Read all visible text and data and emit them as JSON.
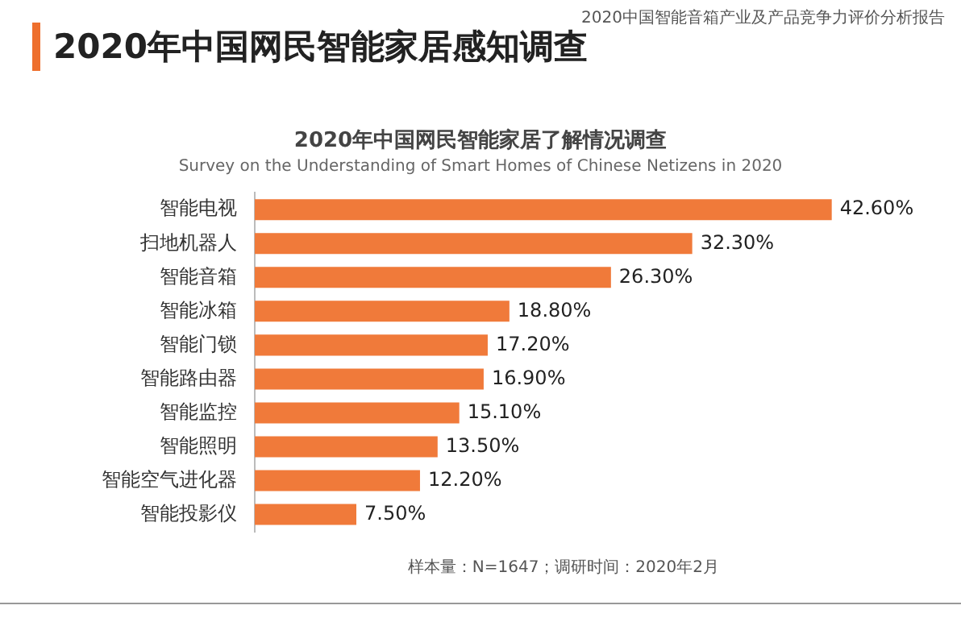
{
  "chart_data": {
    "type": "bar",
    "orientation": "horizontal",
    "title": "2020年中国网民智能家居了解情况调查",
    "subtitle": "Survey on the Understanding of Smart Homes of Chinese Netizens in 2020",
    "categories": [
      "智能电视",
      "扫地机器人",
      "智能音箱",
      "智能冰箱",
      "智能门锁",
      "智能路由器",
      "智能监控",
      "智能照明",
      "智能空气进化器",
      "智能投影仪"
    ],
    "values": [
      42.6,
      32.3,
      26.3,
      18.8,
      17.2,
      16.9,
      15.1,
      13.5,
      12.2,
      7.5
    ],
    "value_labels": [
      "42.60%",
      "32.30%",
      "26.30%",
      "18.80%",
      "17.20%",
      "16.90%",
      "15.10%",
      "13.50%",
      "12.20%",
      "7.50%"
    ],
    "color": "#f07a3a",
    "legend": false,
    "annotations": [
      "2020年中国网民智能家居感知调查",
      "2020中国智能音箱产业及产品竞争力评价分析报告",
      "样本量：N=1647；调研时间：2020年2月"
    ]
  }
}
